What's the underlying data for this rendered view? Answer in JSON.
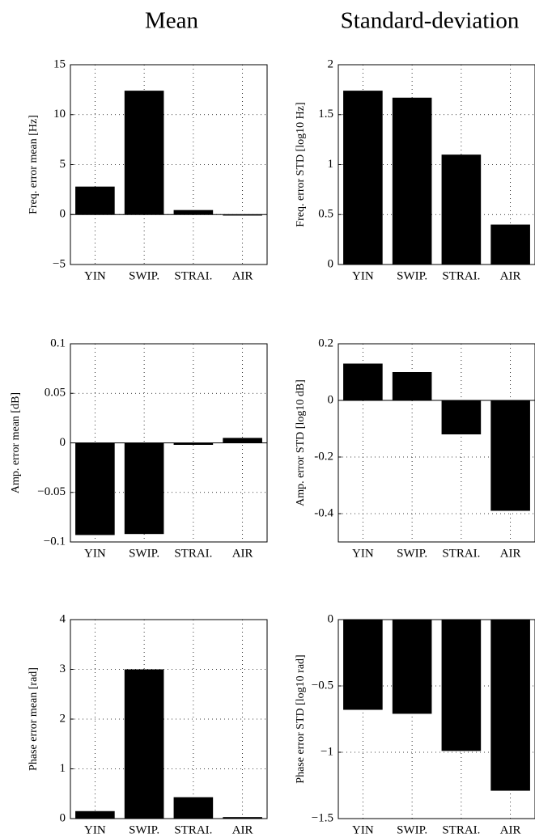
{
  "column_titles": [
    "Mean",
    "Standard-deviation"
  ],
  "chart_data": [
    {
      "type": "bar",
      "ylabel": "Freq. error mean [Hz]",
      "categories": [
        "YIN",
        "SWIP.",
        "STRAI.",
        "AIR"
      ],
      "values": [
        2.8,
        12.4,
        0.45,
        -0.1
      ],
      "color": "#000000",
      "ylim": [
        -5,
        15
      ],
      "yticks": [
        {
          "value": -5,
          "label": "−5"
        },
        0,
        5,
        10,
        15
      ],
      "grid": true
    },
    {
      "type": "bar",
      "ylabel": "Freq. error STD [log10 Hz]",
      "categories": [
        "YIN",
        "SWIP.",
        "STRAI.",
        "AIR"
      ],
      "values": [
        1.74,
        1.67,
        1.1,
        0.4
      ],
      "color": "#000000",
      "ylim": [
        0,
        2
      ],
      "yticks": [
        0,
        0.5,
        1,
        1.5,
        2
      ],
      "grid": true
    },
    {
      "type": "bar",
      "ylabel": "Amp. error mean [dB]",
      "categories": [
        "YIN",
        "SWIP.",
        "STRAI.",
        "AIR"
      ],
      "values": [
        -0.093,
        -0.092,
        -0.002,
        0.005
      ],
      "color": "#000000",
      "ylim": [
        -0.1,
        0.1
      ],
      "yticks": [
        {
          "value": -0.1,
          "label": "−0.1"
        },
        {
          "value": -0.05,
          "label": "−0.05"
        },
        0,
        0.05,
        0.1
      ],
      "grid": true
    },
    {
      "type": "bar",
      "ylabel": "Amp. error STD [log10 dB]",
      "categories": [
        "YIN",
        "SWIP.",
        "STRAI.",
        "AIR"
      ],
      "values": [
        0.13,
        0.1,
        -0.12,
        -0.39
      ],
      "color": "#000000",
      "ylim": [
        -0.5,
        0.2
      ],
      "yticks": [
        -0.4,
        -0.2,
        0,
        0.2
      ],
      "grid": true
    },
    {
      "type": "bar",
      "ylabel": "Phase error mean [rad]",
      "categories": [
        "YIN",
        "SWIP.",
        "STRAI.",
        "AIR"
      ],
      "values": [
        0.15,
        3.0,
        0.43,
        0.03
      ],
      "color": "#000000",
      "ylim": [
        0,
        4
      ],
      "yticks": [
        0,
        1,
        2,
        3,
        4
      ],
      "grid": true
    },
    {
      "type": "bar",
      "ylabel": "Phase error STD [log10 rad]",
      "categories": [
        "YIN",
        "SWIP.",
        "STRAI.",
        "AIR"
      ],
      "values": [
        -0.68,
        -0.71,
        -0.99,
        -1.29
      ],
      "color": "#000000",
      "ylim": [
        -1.5,
        0
      ],
      "yticks": [
        {
          "value": -1.5,
          "label": "−1.5"
        },
        {
          "value": -1,
          "label": "−1"
        },
        {
          "value": -0.5,
          "label": "−0.5"
        },
        0
      ],
      "grid": true
    }
  ]
}
